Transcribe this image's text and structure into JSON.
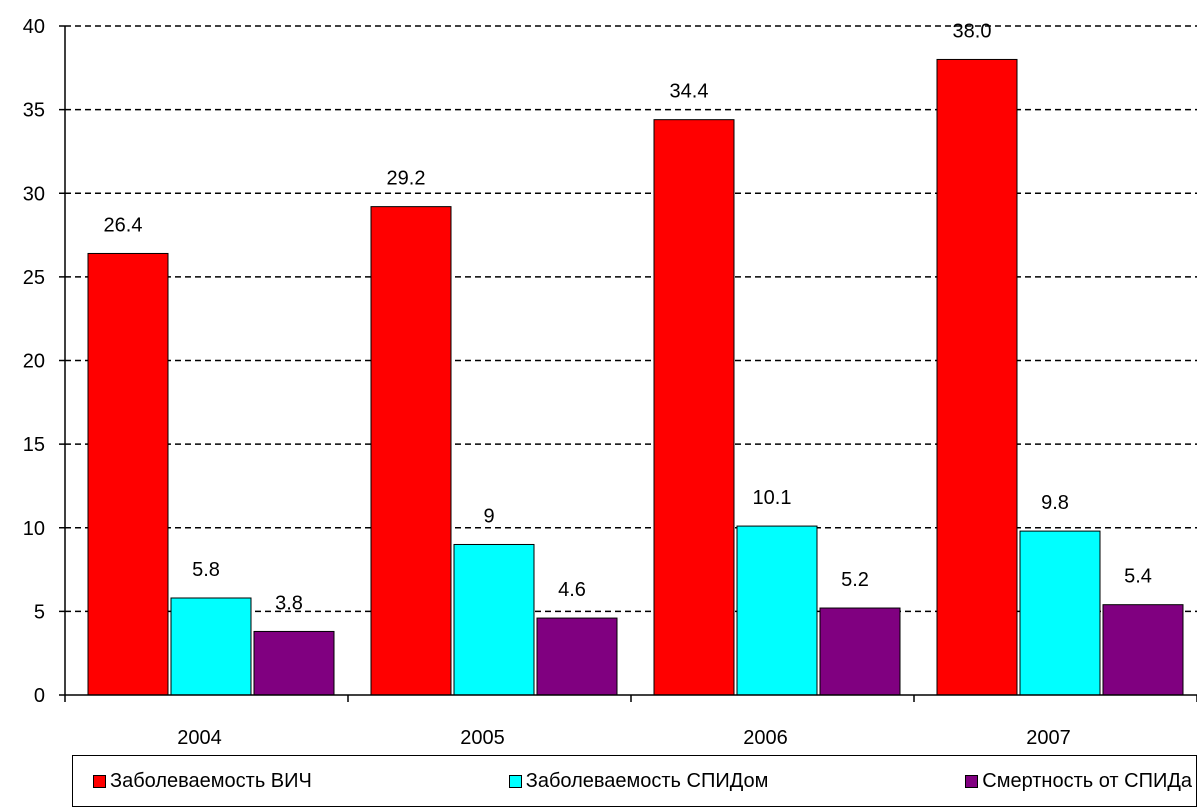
{
  "chart_data": {
    "type": "bar",
    "categories": [
      "2004",
      "2005",
      "2006",
      "2007"
    ],
    "series": [
      {
        "name": "Заболеваемость ВИЧ",
        "color": "#ff0000",
        "values": [
          26.4,
          29.2,
          34.4,
          38.0
        ],
        "labels": [
          "26.4",
          "29.2",
          "34.4",
          "38.0"
        ]
      },
      {
        "name": "Заболеваемость СПИДом",
        "color": "#00ffff",
        "values": [
          5.8,
          9,
          10.1,
          9.8
        ],
        "labels": [
          "5.8",
          "9",
          "10.1",
          "9.8"
        ]
      },
      {
        "name": "Смертность от СПИДа",
        "color": "#800080",
        "values": [
          3.8,
          4.6,
          5.2,
          5.4
        ],
        "labels": [
          "3.8",
          "4.6",
          "5.2",
          "5.4"
        ]
      }
    ],
    "ylim": [
      0,
      40
    ],
    "yticks": [
      "0",
      "5",
      "10",
      "15",
      "20",
      "25",
      "30",
      "35",
      "40"
    ],
    "grid": "dashed horizontal",
    "legend_position": "bottom"
  }
}
